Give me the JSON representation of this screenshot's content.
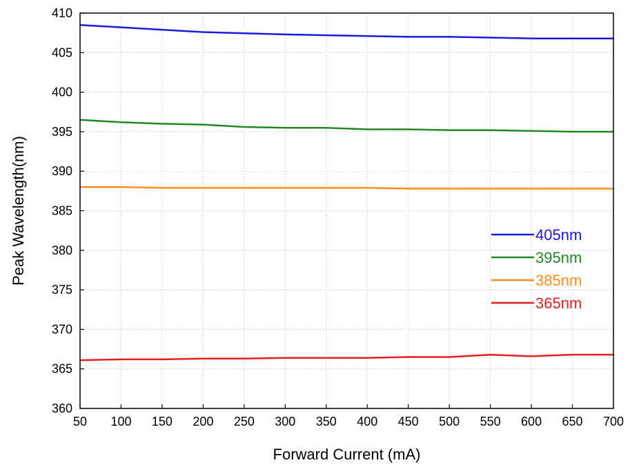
{
  "chart_data": {
    "type": "line",
    "title": "",
    "xlabel": "Forward Current (mA)",
    "ylabel": "Peak Wavelength(nm)",
    "xlim": [
      50,
      700
    ],
    "ylim": [
      360,
      410
    ],
    "x_ticks": [
      50,
      100,
      150,
      200,
      250,
      300,
      350,
      400,
      450,
      500,
      550,
      600,
      650,
      700
    ],
    "y_ticks": [
      360,
      365,
      370,
      375,
      380,
      385,
      390,
      395,
      400,
      405,
      410
    ],
    "grid": true,
    "legend_position": "right",
    "x": [
      50,
      100,
      150,
      200,
      250,
      300,
      350,
      400,
      450,
      500,
      550,
      600,
      650,
      700
    ],
    "series": [
      {
        "name": "405nm",
        "color": "#1a1adf",
        "values": [
          408.5,
          408.2,
          407.9,
          407.6,
          407.45,
          407.3,
          407.2,
          407.1,
          407.0,
          407.0,
          406.9,
          406.8,
          406.8,
          406.8
        ]
      },
      {
        "name": "395nm",
        "color": "#1f8a1f",
        "values": [
          396.5,
          396.2,
          396.0,
          395.9,
          395.6,
          395.5,
          395.5,
          395.3,
          395.3,
          395.2,
          395.2,
          395.1,
          395.0,
          395.0
        ]
      },
      {
        "name": "385nm",
        "color": "#ff8c1a",
        "values": [
          388.0,
          388.0,
          387.9,
          387.9,
          387.9,
          387.9,
          387.9,
          387.9,
          387.8,
          387.8,
          387.8,
          387.8,
          387.8,
          387.8
        ]
      },
      {
        "name": "365nm",
        "color": "#e81c1c",
        "values": [
          366.1,
          366.2,
          366.2,
          366.3,
          366.3,
          366.4,
          366.4,
          366.4,
          366.5,
          366.5,
          366.8,
          366.6,
          366.8,
          366.8
        ]
      }
    ]
  }
}
